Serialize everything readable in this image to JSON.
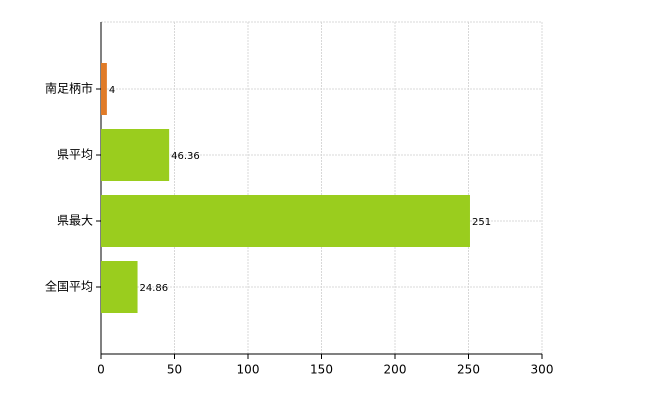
{
  "chart_data": {
    "type": "hbar",
    "categories": [
      "南足柄市",
      "県平均",
      "県最大",
      "全国平均"
    ],
    "values": [
      4,
      46.36,
      251,
      24.86
    ],
    "colors": [
      "#e07b28",
      "#9acd1e",
      "#9acd1e",
      "#9acd1e"
    ],
    "xlim": [
      0,
      300
    ],
    "xticks": [
      0,
      50,
      100,
      150,
      200,
      250,
      300
    ],
    "grid": true
  }
}
